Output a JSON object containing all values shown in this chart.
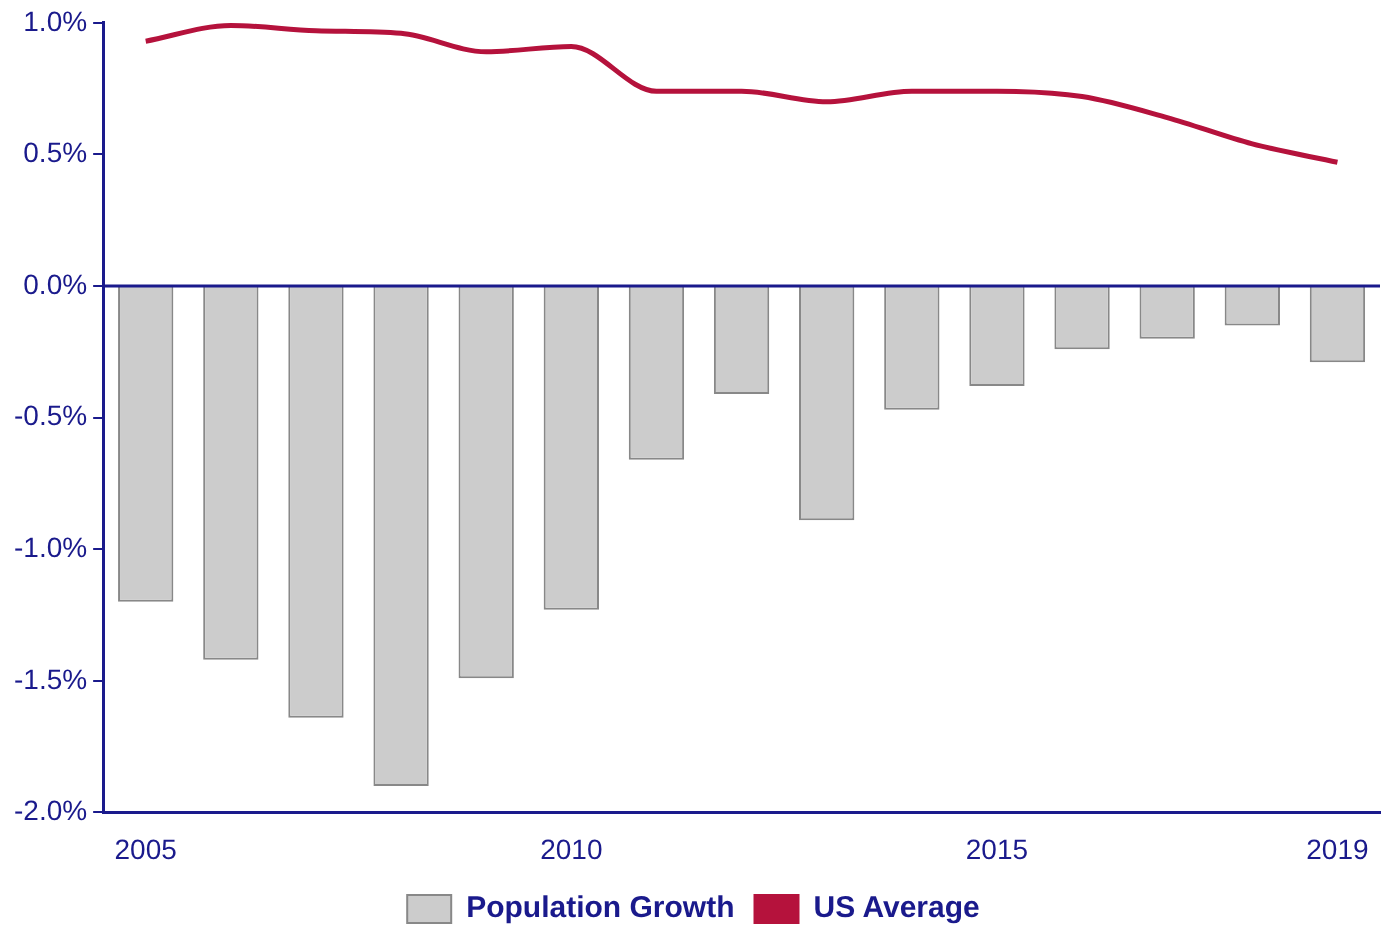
{
  "chart_data": {
    "type": "bar",
    "categories": [
      "2005",
      null,
      null,
      null,
      null,
      "2010",
      null,
      null,
      null,
      null,
      "2015",
      null,
      null,
      null,
      "2019"
    ],
    "series": [
      {
        "name": "Population Growth",
        "color": "#cccccc",
        "values": [
          -1.2,
          -1.42,
          -1.64,
          -1.9,
          -1.49,
          -1.23,
          -0.66,
          -0.41,
          -0.89,
          -0.47,
          -0.38,
          -0.24,
          -0.2,
          -0.15,
          -0.29
        ]
      },
      {
        "name": "US Average",
        "type": "line",
        "color": "#b5123c",
        "values": [
          0.93,
          0.99,
          0.97,
          0.96,
          0.89,
          0.91,
          0.74,
          0.74,
          0.7,
          0.74,
          0.74,
          0.72,
          0.64,
          0.54,
          0.47
        ]
      }
    ],
    "ylim": [
      -2,
      1
    ],
    "yticks": [
      {
        "value": -2,
        "label": "-2.0%"
      },
      {
        "value": -1.5,
        "label": "-1.5%"
      },
      {
        "value": -1,
        "label": "-1.0%"
      },
      {
        "value": -0.5,
        "label": "-0.5%"
      },
      {
        "value": 0,
        "label": "0.0%"
      },
      {
        "value": 0.5,
        "label": "0.5%"
      },
      {
        "value": 1,
        "label": "1.0%"
      }
    ],
    "ref_lines": [
      {
        "axis": "y",
        "value": 0,
        "color": "#1a1a8c"
      }
    ],
    "grid": false,
    "legend": "bottom",
    "marker": "none"
  }
}
